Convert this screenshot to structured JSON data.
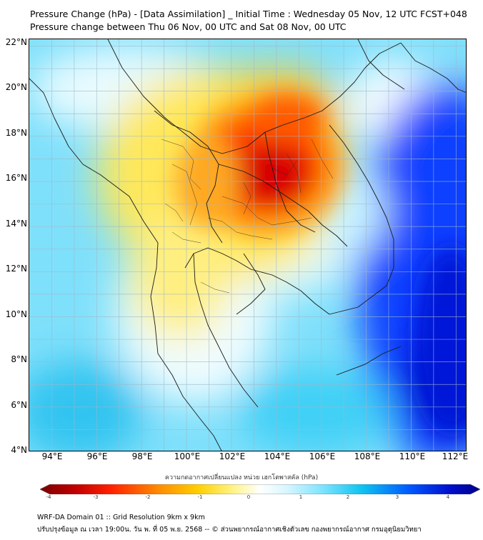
{
  "header": {
    "title_line1": "Pressure Change (hPa) - [Data Assimilation] _ Initial Time : Wednesday 05 Nov, 12 UTC FCST+048",
    "title_line2": "Pressure change between Thu 06 Nov, 00 UTC and Sat 08 Nov, 00 UTC"
  },
  "map": {
    "lat_labels": [
      "22°N",
      "20°N",
      "18°N",
      "16°N",
      "14°N",
      "12°N",
      "10°N",
      "8°N",
      "6°N",
      "4°N"
    ],
    "lon_labels": [
      "94°E",
      "96°E",
      "98°E",
      "100°E",
      "102°E",
      "104°E",
      "106°E",
      "108°E",
      "110°E",
      "112°E"
    ],
    "lat_range": [
      4,
      22.3
    ],
    "lon_range": [
      93,
      112.5
    ],
    "grid": true
  },
  "colorbar": {
    "title": "ความกดอากาศเปลี่ยนแปลง หน่วย เฮกโตพาสคัล (hPa)",
    "ticks": [
      "-4",
      "-3",
      "-2",
      "-1",
      "0",
      "1",
      "2",
      "3",
      "4"
    ],
    "range": [
      -4,
      4
    ],
    "colors": [
      "#7a0000",
      "#d40000",
      "#ff3a00",
      "#ff9a00",
      "#ffd400",
      "#fff470",
      "#ffffd8",
      "#ffffff",
      "#d6f6ff",
      "#80e6ff",
      "#10c8f0",
      "#0060ff",
      "#0010cc",
      "#00008a"
    ]
  },
  "footer": {
    "line1": "WRF-DA Domain 01 :: Grid Resolution 9km x 9km",
    "line2": "ปรับปรุงข้อมูล ณ เวลา 19:00น. วัน พ. ที่ 05 พ.ย. 2568 -- © ส่วนพยากรณ์อากาศเชิงตัวเลข กองพยากรณ์อากาศ กรมอุตุนิยมวิทยา"
  }
}
